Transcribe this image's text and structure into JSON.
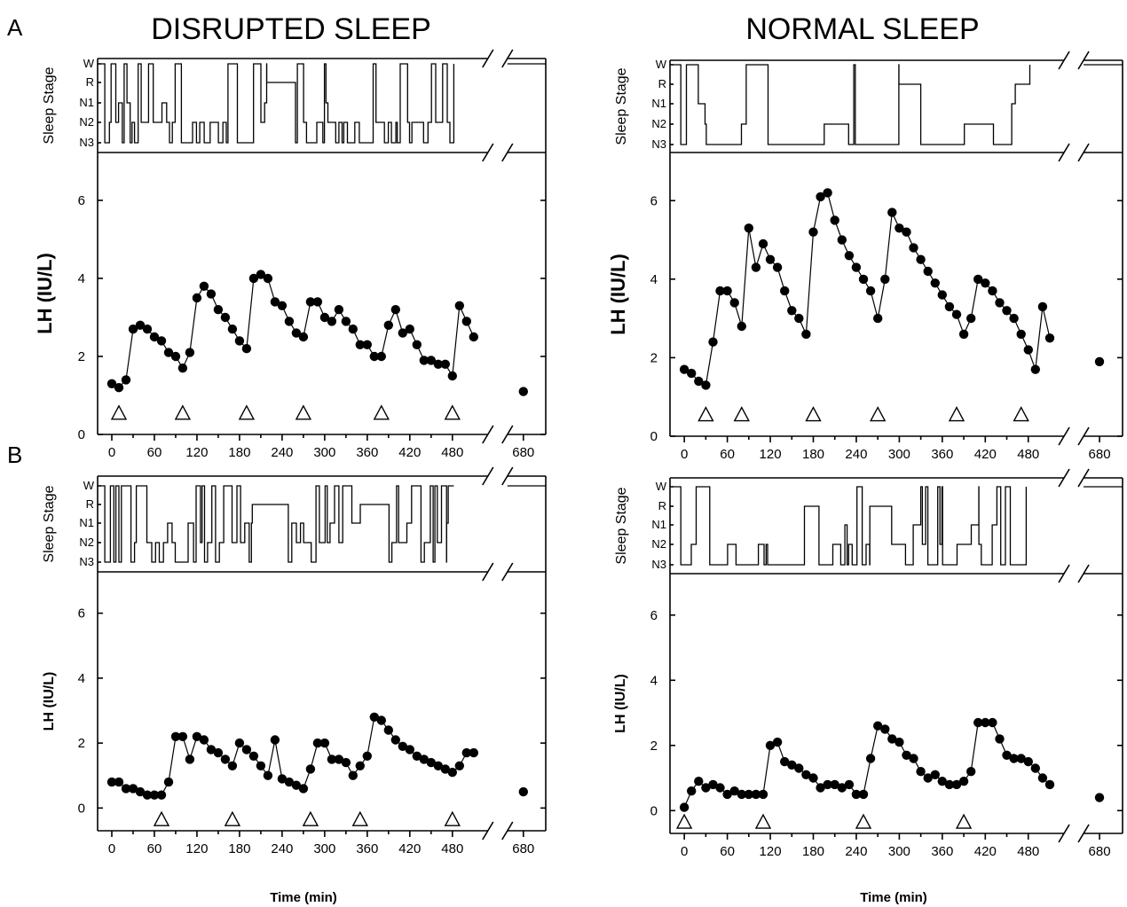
{
  "figure": {
    "row_labels": [
      "A",
      "B"
    ],
    "column_titles": [
      "DISRUPTED SLEEP",
      "NORMAL SLEEP"
    ],
    "xlabel": "Time (min)"
  },
  "chart_data": [
    {
      "type": "line",
      "row": "A",
      "column": "DISRUPTED SLEEP",
      "ylabel": "LH (IU/L)",
      "hypnogram_label": "Sleep Stage",
      "stage_labels": [
        "W",
        "R",
        "N1",
        "N2",
        "N3"
      ],
      "xticks": [
        "0",
        "60",
        "120",
        "180",
        "240",
        "300",
        "360",
        "420",
        "480",
        "680"
      ],
      "yticks": [
        "0",
        "2",
        "4",
        "6"
      ],
      "ylim": [
        0,
        7
      ],
      "x": [
        0,
        10,
        20,
        30,
        40,
        50,
        60,
        70,
        80,
        90,
        100,
        110,
        120,
        130,
        140,
        150,
        160,
        170,
        180,
        190,
        200,
        210,
        220,
        230,
        240,
        250,
        260,
        270,
        280,
        290,
        300,
        310,
        320,
        330,
        340,
        350,
        360,
        370,
        380,
        390,
        400,
        410,
        420,
        430,
        440,
        450,
        460,
        470,
        480,
        490,
        500,
        510,
        680
      ],
      "y": [
        1.3,
        1.2,
        1.4,
        2.7,
        2.8,
        2.7,
        2.5,
        2.4,
        2.1,
        2.0,
        1.7,
        2.1,
        3.5,
        3.8,
        3.6,
        3.2,
        3.0,
        2.7,
        2.4,
        2.2,
        4.0,
        4.1,
        4.0,
        3.4,
        3.3,
        2.9,
        2.6,
        2.5,
        3.4,
        3.4,
        3.0,
        2.9,
        3.2,
        2.9,
        2.7,
        2.3,
        2.3,
        2.0,
        2.0,
        2.8,
        3.2,
        2.6,
        2.7,
        2.3,
        1.9,
        1.9,
        1.8,
        1.8,
        1.5,
        3.3,
        2.9,
        2.5,
        1.1
      ],
      "stimuli_x": [
        10,
        100,
        190,
        270,
        380,
        480
      ]
    },
    {
      "type": "line",
      "row": "A",
      "column": "NORMAL SLEEP",
      "ylabel": "LH (IU/L)",
      "hypnogram_label": "Sleep Stage",
      "stage_labels": [
        "W",
        "R",
        "N1",
        "N2",
        "N3"
      ],
      "xticks": [
        "0",
        "60",
        "120",
        "180",
        "240",
        "300",
        "360",
        "420",
        "480",
        "680"
      ],
      "yticks": [
        "0",
        "2",
        "4",
        "6"
      ],
      "ylim": [
        0,
        7
      ],
      "x": [
        0,
        10,
        20,
        30,
        40,
        50,
        60,
        70,
        80,
        90,
        100,
        110,
        120,
        130,
        140,
        150,
        160,
        170,
        180,
        190,
        200,
        210,
        220,
        230,
        240,
        250,
        260,
        270,
        280,
        290,
        300,
        310,
        320,
        330,
        340,
        350,
        360,
        370,
        380,
        390,
        400,
        410,
        420,
        430,
        440,
        450,
        460,
        470,
        480,
        490,
        500,
        510,
        680
      ],
      "y": [
        1.7,
        1.6,
        1.4,
        1.3,
        2.4,
        3.7,
        3.7,
        3.4,
        2.8,
        5.3,
        4.3,
        4.9,
        4.5,
        4.3,
        3.7,
        3.2,
        3.0,
        2.6,
        5.2,
        6.1,
        6.2,
        5.5,
        5.0,
        4.6,
        4.3,
        4.0,
        3.7,
        3.0,
        4.0,
        5.7,
        5.3,
        5.2,
        4.8,
        4.5,
        4.2,
        3.9,
        3.6,
        3.3,
        3.1,
        2.6,
        3.0,
        4.0,
        3.9,
        3.7,
        3.4,
        3.2,
        3.0,
        2.6,
        2.2,
        1.7,
        3.3,
        2.5,
        1.9
      ],
      "stimuli_x": [
        30,
        80,
        180,
        270,
        380,
        470
      ]
    },
    {
      "type": "line",
      "row": "B",
      "column": "DISRUPTED SLEEP",
      "ylabel": "LH (IU/L)",
      "hypnogram_label": "Sleep Stage",
      "stage_labels": [
        "W",
        "R",
        "N1",
        "N2",
        "N3"
      ],
      "xticks": [
        "0",
        "60",
        "120",
        "180",
        "240",
        "300",
        "360",
        "420",
        "480",
        "680"
      ],
      "yticks": [
        "0",
        "2",
        "4",
        "6"
      ],
      "ylim": [
        -0.7,
        7
      ],
      "x": [
        0,
        10,
        20,
        30,
        40,
        50,
        60,
        70,
        80,
        90,
        100,
        110,
        120,
        130,
        140,
        150,
        160,
        170,
        180,
        190,
        200,
        210,
        220,
        230,
        240,
        250,
        260,
        270,
        280,
        290,
        300,
        310,
        320,
        330,
        340,
        350,
        360,
        370,
        380,
        390,
        400,
        410,
        420,
        430,
        440,
        450,
        460,
        470,
        480,
        490,
        500,
        510,
        680
      ],
      "y": [
        0.8,
        0.8,
        0.6,
        0.6,
        0.5,
        0.4,
        0.4,
        0.4,
        0.8,
        2.2,
        2.2,
        1.5,
        2.2,
        2.1,
        1.8,
        1.7,
        1.5,
        1.3,
        2.0,
        1.8,
        1.6,
        1.3,
        1.0,
        2.1,
        0.9,
        0.8,
        0.7,
        0.6,
        1.2,
        2.0,
        2.0,
        1.5,
        1.5,
        1.4,
        1.0,
        1.3,
        1.6,
        2.8,
        2.7,
        2.4,
        2.1,
        1.9,
        1.8,
        1.6,
        1.5,
        1.4,
        1.3,
        1.2,
        1.1,
        1.3,
        1.7,
        1.7,
        0.5
      ],
      "stimuli_x": [
        70,
        170,
        280,
        350,
        480
      ]
    },
    {
      "type": "line",
      "row": "B",
      "column": "NORMAL SLEEP",
      "ylabel": "LH (IU/L)",
      "hypnogram_label": "Sleep Stage",
      "stage_labels": [
        "W",
        "R",
        "N1",
        "N2",
        "N3"
      ],
      "xticks": [
        "0",
        "60",
        "120",
        "180",
        "240",
        "300",
        "360",
        "420",
        "480",
        "680"
      ],
      "yticks": [
        "0",
        "2",
        "4",
        "6"
      ],
      "ylim": [
        -0.7,
        7
      ],
      "x": [
        0,
        10,
        20,
        30,
        40,
        50,
        60,
        70,
        80,
        90,
        100,
        110,
        120,
        130,
        140,
        150,
        160,
        170,
        180,
        190,
        200,
        210,
        220,
        230,
        240,
        250,
        260,
        270,
        280,
        290,
        300,
        310,
        320,
        330,
        340,
        350,
        360,
        370,
        380,
        390,
        400,
        410,
        420,
        430,
        440,
        450,
        460,
        470,
        480,
        490,
        500,
        510,
        680
      ],
      "y": [
        0.1,
        0.6,
        0.9,
        0.7,
        0.8,
        0.7,
        0.5,
        0.6,
        0.5,
        0.5,
        0.5,
        0.5,
        2.0,
        2.1,
        1.5,
        1.4,
        1.3,
        1.1,
        1.0,
        0.7,
        0.8,
        0.8,
        0.7,
        0.8,
        0.5,
        0.5,
        1.6,
        2.6,
        2.5,
        2.2,
        2.1,
        1.7,
        1.6,
        1.2,
        1.0,
        1.1,
        0.9,
        0.8,
        0.8,
        0.9,
        1.2,
        2.7,
        2.7,
        2.7,
        2.2,
        1.7,
        1.6,
        1.6,
        1.5,
        1.3,
        1.0,
        0.8,
        0.4
      ],
      "stimuli_x": [
        0,
        110,
        250,
        390
      ]
    }
  ]
}
